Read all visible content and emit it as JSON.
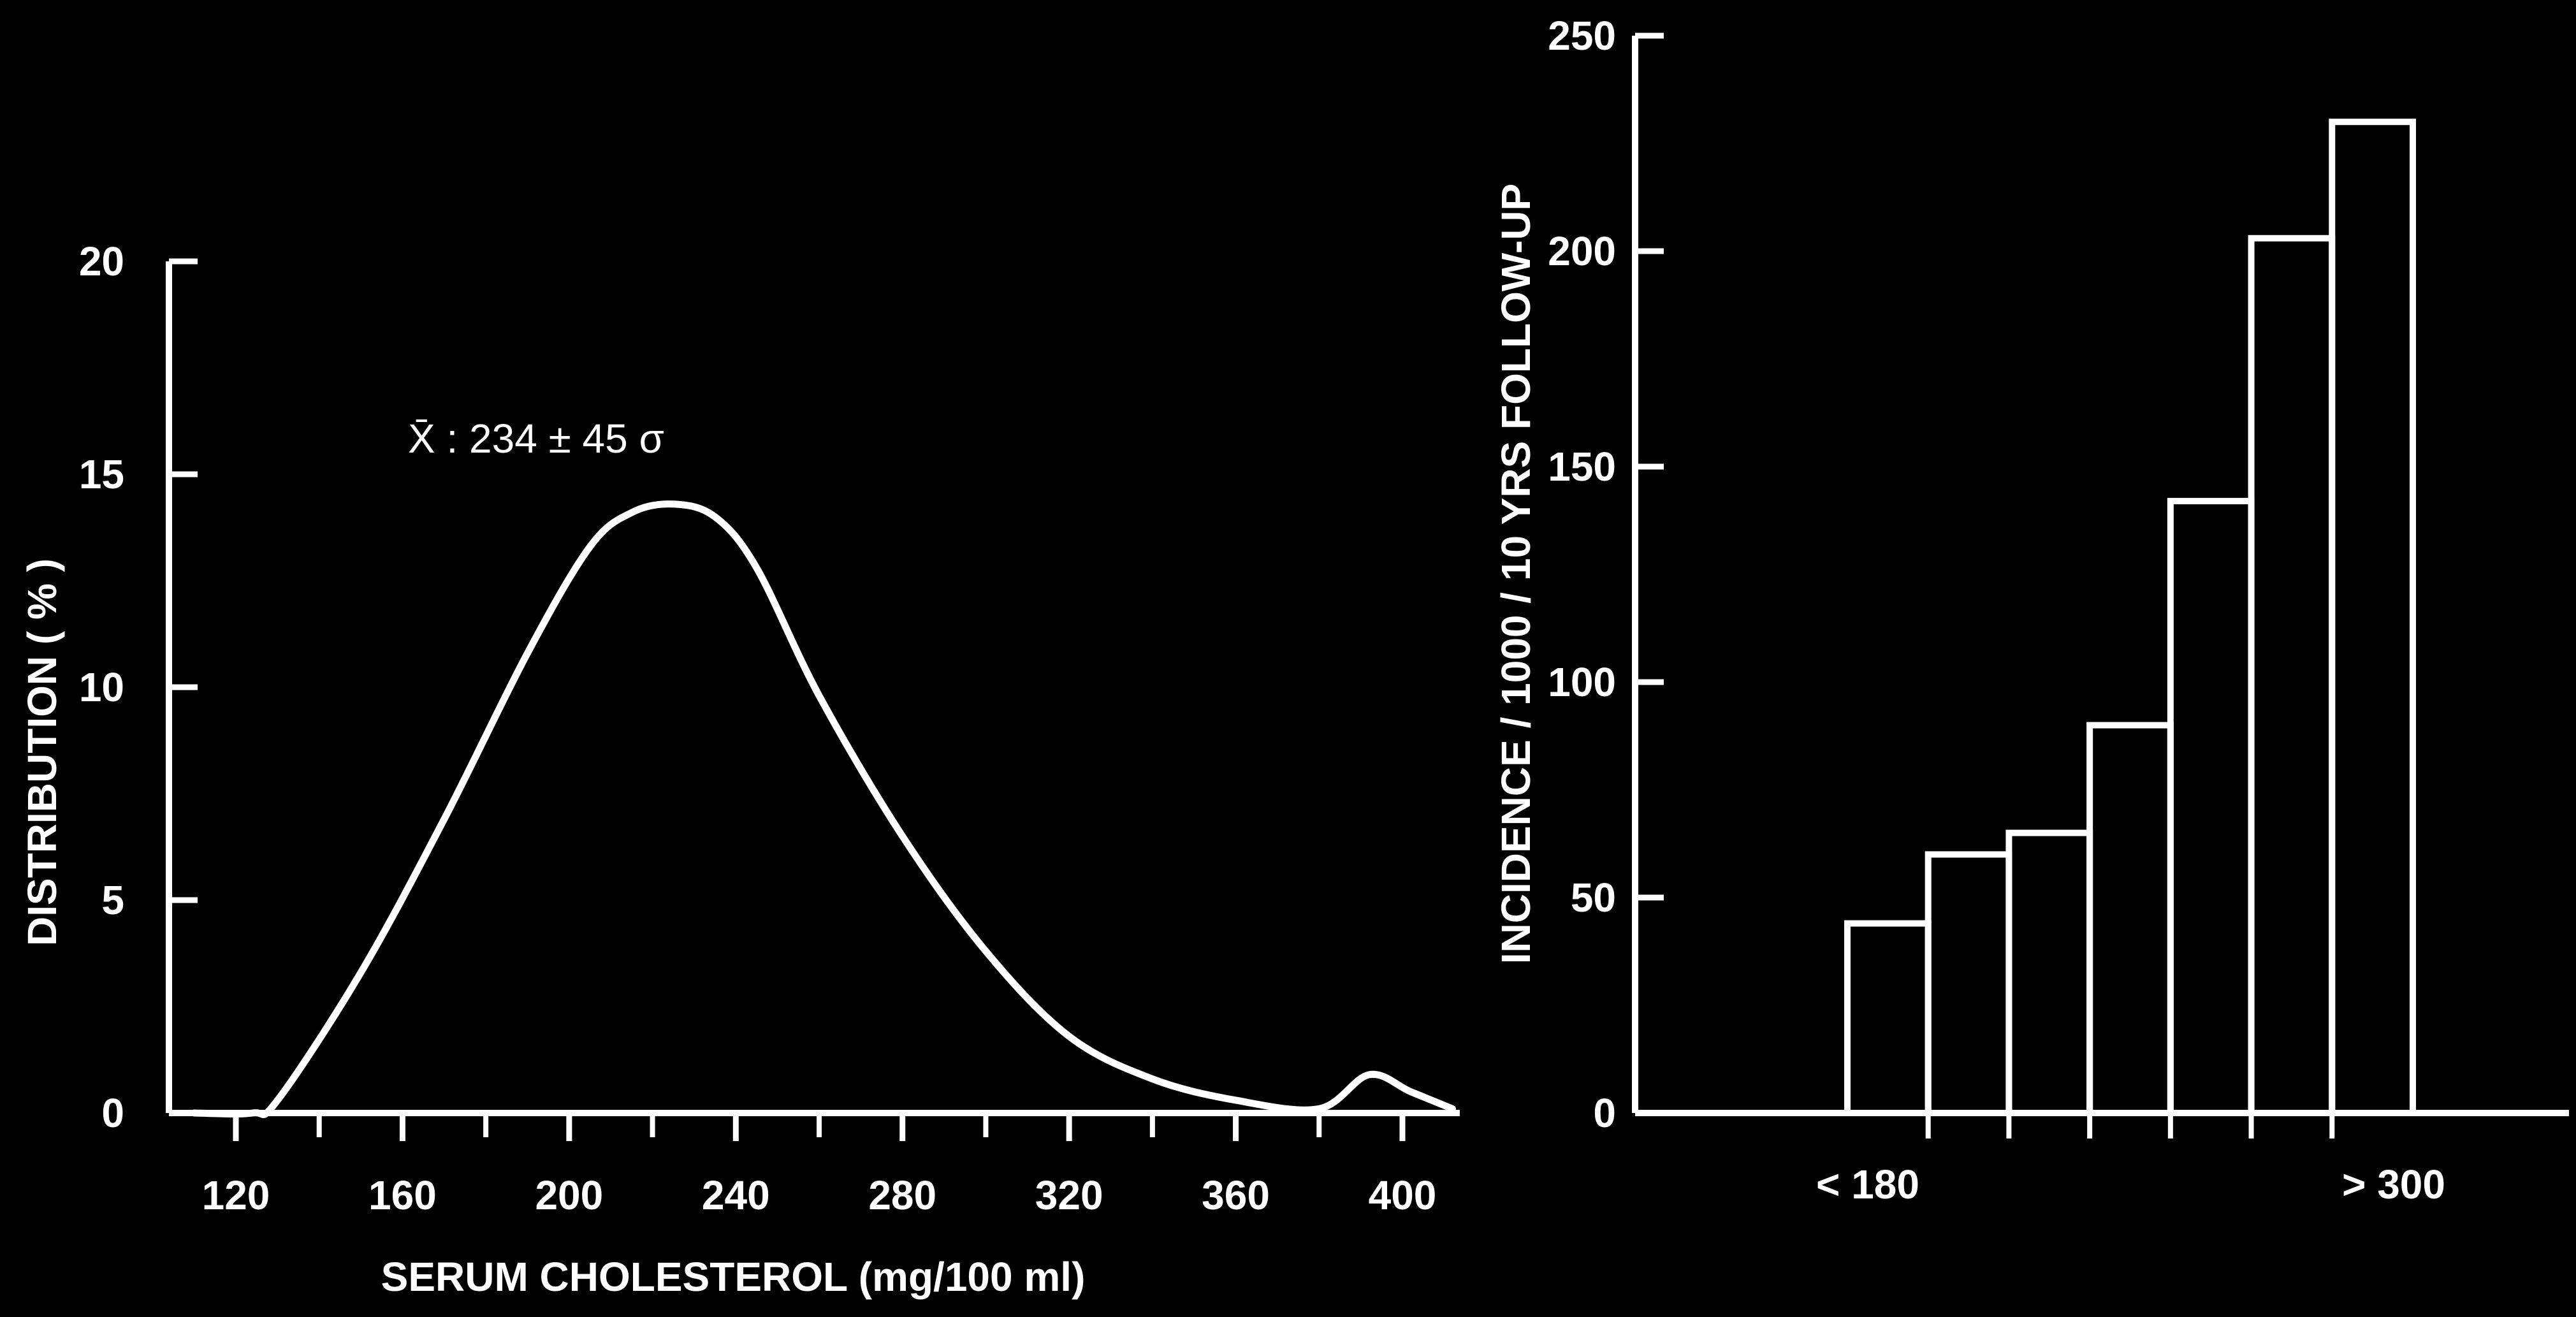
{
  "colors": {
    "background": "#000000",
    "foreground": "#ffffff"
  },
  "chart_data": [
    {
      "type": "line",
      "title": "",
      "xlabel": "SERUM CHOLESTEROL (mg/100 ml)",
      "ylabel": "DISTRIBUTION ( % )",
      "xlim": [
        110,
        420
      ],
      "ylim": [
        0,
        20
      ],
      "x_ticks": [
        120,
        160,
        200,
        240,
        280,
        320,
        360,
        400
      ],
      "y_ticks": [
        0,
        5,
        10,
        15,
        20
      ],
      "annotation": "X̄ : 234 ± 45 σ",
      "grid": false,
      "series": [
        {
          "x": [
            110,
            124,
            130,
            150,
            170,
            190,
            205,
            215,
            225,
            235,
            245,
            260,
            280,
            300,
            320,
            340,
            360,
            380,
            392,
            402,
            412
          ],
          "y": [
            0,
            0,
            0.3,
            3.3,
            6.9,
            10.8,
            13.3,
            14.1,
            14.3,
            14.0,
            12.8,
            9.8,
            6.5,
            3.8,
            1.8,
            0.8,
            0.3,
            0.1,
            0.9,
            0.5,
            0.1
          ]
        }
      ]
    },
    {
      "type": "bar",
      "title": "",
      "xlabel": "",
      "ylabel": "INCIDENCE / 1000 / 10 YRS FOLLOW-UP",
      "ylim": [
        0,
        250
      ],
      "y_ticks": [
        0,
        50,
        100,
        150,
        200,
        250
      ],
      "category_labels": [
        "< 180",
        "> 300"
      ],
      "values": [
        44,
        60,
        65,
        90,
        142,
        203,
        230
      ],
      "grid": false
    }
  ]
}
